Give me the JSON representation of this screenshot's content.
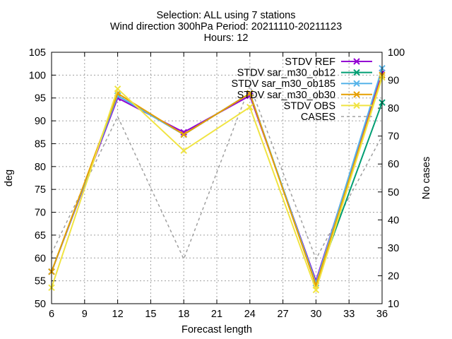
{
  "title_lines": [
    "Selection: ALL using     7 stations",
    "Wind direction 300hPa   Period: 20211110-20211123",
    "Hours: 12"
  ],
  "chart_data": {
    "type": "line",
    "xlabel": "Forecast length",
    "ylabel": "deg",
    "y2label": "No cases",
    "xlim": [
      6,
      36
    ],
    "ylim": [
      50,
      105
    ],
    "y2lim": [
      10,
      100
    ],
    "x_ticks": [
      6,
      9,
      12,
      15,
      18,
      21,
      24,
      27,
      30,
      33,
      36
    ],
    "y_ticks": [
      50,
      55,
      60,
      65,
      70,
      75,
      80,
      85,
      90,
      95,
      100,
      105
    ],
    "y2_ticks": [
      10,
      20,
      30,
      40,
      50,
      60,
      70,
      80,
      90,
      100
    ],
    "grid": true,
    "legend_position": "top-right",
    "x": [
      6,
      12,
      18,
      24,
      30,
      36
    ],
    "series": [
      {
        "name": "STDV REF",
        "axis": "y",
        "color": "#9400d3",
        "marker": "x",
        "dashed": false,
        "values": [
          57,
          95,
          87.5,
          95.5,
          55,
          100.5
        ]
      },
      {
        "name": "STDV sar_m30_ob12",
        "axis": "y",
        "color": "#009e73",
        "marker": "x",
        "dashed": false,
        "values": [
          57,
          95.5,
          87,
          96,
          54.5,
          94
        ]
      },
      {
        "name": "STDV sar_m30_ob185",
        "axis": "y",
        "color": "#56b4e9",
        "marker": "x",
        "dashed": false,
        "values": [
          57,
          95.5,
          87,
          96,
          54.5,
          101.5
        ]
      },
      {
        "name": "STDV sar_m30_ob30",
        "axis": "y",
        "color": "#e69f00",
        "marker": "x",
        "dashed": false,
        "values": [
          57,
          96,
          87,
          96,
          54,
          100
        ]
      },
      {
        "name": "STDV OBS",
        "axis": "y",
        "color": "#f0e442",
        "marker": "x",
        "dashed": false,
        "values": [
          53.5,
          97,
          83.5,
          93,
          53,
          99.5
        ]
      },
      {
        "name": "CASES",
        "axis": "y2",
        "color": "#a0a0a0",
        "marker": "none",
        "dashed": true,
        "values": [
          28,
          77,
          26,
          88,
          26,
          70
        ]
      }
    ]
  }
}
